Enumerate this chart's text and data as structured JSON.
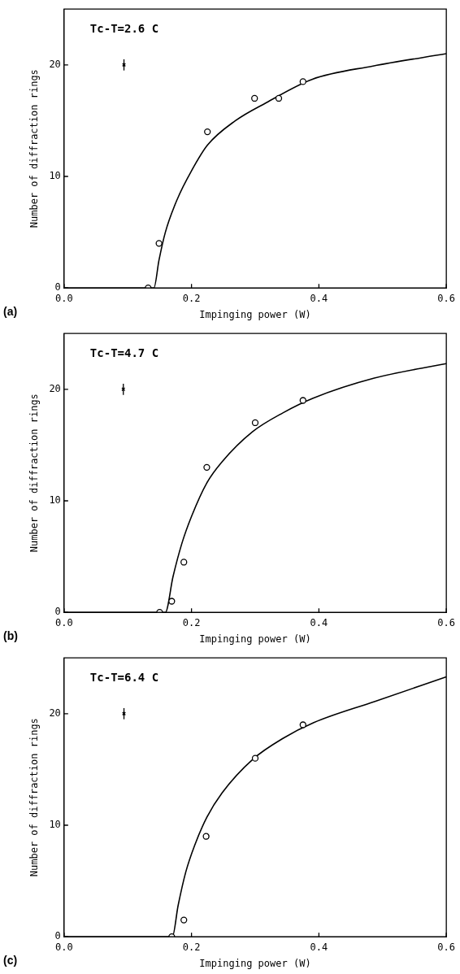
{
  "chart_data": [
    {
      "type": "scatter",
      "xlabel": "Impinging power (W)",
      "ylabel": "Number of diffraction rings",
      "annotations": [
        "Tc-T=2.6 C",
        "(a)"
      ],
      "xlim": [
        0,
        0.6
      ],
      "ylim": [
        0,
        25
      ],
      "xticks": [
        {
          "value": 0,
          "label": "0.0"
        },
        {
          "value": 0.2,
          "label": "0.2"
        },
        {
          "value": 0.4,
          "label": "0.4"
        },
        {
          "value": 0.6,
          "label": "0.6"
        }
      ],
      "yticks": [
        0,
        10,
        20
      ],
      "grid": false,
      "legend": false,
      "series": [
        {
          "type": "scatter",
          "color": "#000000",
          "marker": "circle",
          "x": [
            0.132,
            0.149,
            0.225,
            0.299,
            0.337,
            0.375
          ],
          "values": [
            0,
            4,
            14,
            17,
            17,
            18.5
          ]
        },
        {
          "type": "line",
          "color": "#000000",
          "x": [
            0,
            0.141,
            0.149,
            0.159,
            0.178,
            0.2,
            0.225,
            0.269,
            0.317,
            0.389,
            0.485,
            0.6
          ],
          "values": [
            0,
            0,
            2.5,
            5,
            8,
            10.5,
            12.8,
            15,
            16.6,
            18.7,
            19.9,
            21
          ]
        },
        {
          "type": "scatter",
          "color": "#000000",
          "marker": "cross",
          "x": [
            0.094
          ],
          "values": [
            20
          ],
          "errors": [
            0.5
          ]
        }
      ]
    },
    {
      "type": "scatter",
      "xlabel": "Impinging power (W)",
      "ylabel": "Number of diffraction rings",
      "annotations": [
        "Tc-T=4.7 C",
        "(b)"
      ],
      "xlim": [
        0,
        0.6
      ],
      "ylim": [
        0,
        25
      ],
      "xticks": [
        {
          "value": 0,
          "label": "0.0"
        },
        {
          "value": 0.2,
          "label": "0.2"
        },
        {
          "value": 0.4,
          "label": "0.4"
        },
        {
          "value": 0.6,
          "label": "0.6"
        }
      ],
      "yticks": [
        0,
        10,
        20
      ],
      "grid": false,
      "legend": false,
      "series": [
        {
          "type": "scatter",
          "color": "#000000",
          "marker": "circle",
          "x": [
            0.15,
            0.169,
            0.188,
            0.224,
            0.3,
            0.375
          ],
          "values": [
            0,
            1,
            4.5,
            13,
            17,
            19
          ]
        },
        {
          "type": "line",
          "color": "#000000",
          "x": [
            0,
            0.159,
            0.171,
            0.185,
            0.2,
            0.224,
            0.248,
            0.296,
            0.344,
            0.391,
            0.487,
            0.6
          ],
          "values": [
            0,
            0,
            3.2,
            6.2,
            8.6,
            11.6,
            13.5,
            16.2,
            17.9,
            19.2,
            21,
            22.3
          ]
        },
        {
          "type": "scatter",
          "color": "#000000",
          "marker": "cross",
          "x": [
            0.093
          ],
          "values": [
            20
          ],
          "errors": [
            0.5
          ]
        }
      ]
    },
    {
      "type": "scatter",
      "xlabel": "Impinging power (W)",
      "ylabel": "Number of diffraction rings",
      "annotations": [
        "Tc-T=6.4 C",
        "(c)"
      ],
      "xlim": [
        0,
        0.6
      ],
      "ylim": [
        0,
        25
      ],
      "xticks": [
        {
          "value": 0,
          "label": "0.0"
        },
        {
          "value": 0.2,
          "label": "0.2"
        },
        {
          "value": 0.4,
          "label": "0.4"
        },
        {
          "value": 0.6,
          "label": "0.6"
        }
      ],
      "yticks": [
        0,
        10,
        20
      ],
      "grid": false,
      "legend": false,
      "series": [
        {
          "type": "scatter",
          "color": "#000000",
          "marker": "circle",
          "x": [
            0.169,
            0.188,
            0.223,
            0.3,
            0.375
          ],
          "values": [
            0,
            1.5,
            9,
            16,
            19
          ]
        },
        {
          "type": "line",
          "color": "#000000",
          "x": [
            0,
            0.17,
            0.179,
            0.191,
            0.205,
            0.224,
            0.248,
            0.296,
            0.344,
            0.392,
            0.488,
            0.6
          ],
          "values": [
            0,
            0,
            2.8,
            5.8,
            8.2,
            10.7,
            12.9,
            15.9,
            17.8,
            19.2,
            21.1,
            23.3
          ]
        },
        {
          "type": "scatter",
          "color": "#000000",
          "marker": "cross",
          "x": [
            0.094
          ],
          "values": [
            20
          ],
          "errors": [
            0.5
          ]
        }
      ]
    }
  ]
}
